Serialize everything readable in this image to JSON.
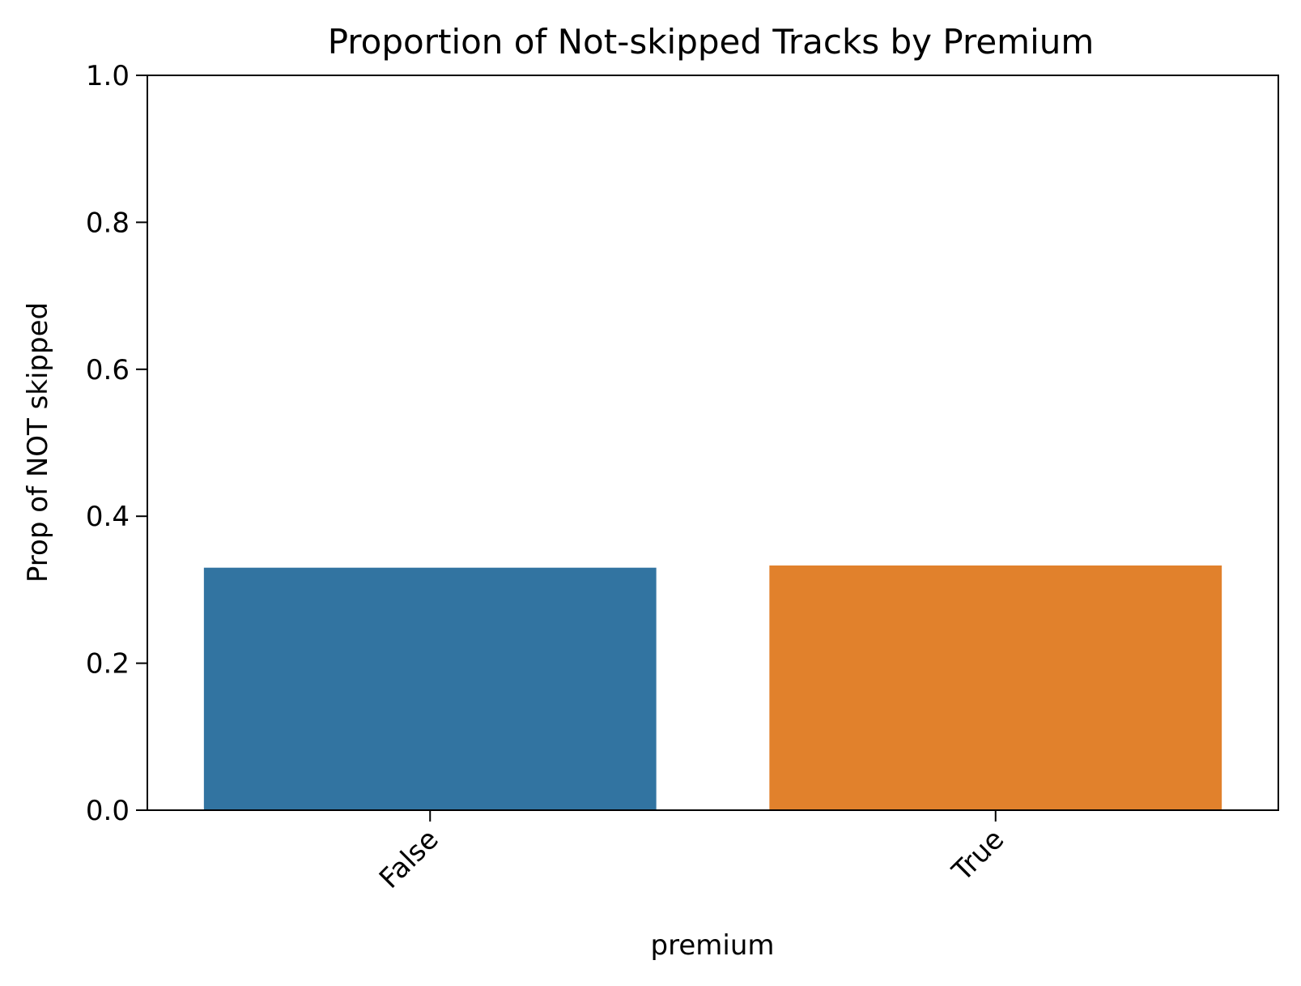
{
  "chart_data": {
    "type": "bar",
    "title": "Proportion of Not-skipped Tracks by Premium",
    "xlabel": "premium",
    "ylabel": "Prop of NOT skipped",
    "categories": [
      "False",
      "True"
    ],
    "values": [
      0.33,
      0.333
    ],
    "colors": [
      "#3274a1",
      "#e1812c"
    ],
    "ylim": [
      0,
      1.0
    ],
    "yticks": [
      "0.0",
      "0.2",
      "0.4",
      "0.6",
      "0.8",
      "1.0"
    ],
    "ytick_values": [
      0,
      0.2,
      0.4,
      0.6,
      0.8,
      1.0
    ],
    "grid": false,
    "x_tick_rotation_deg": 45
  }
}
